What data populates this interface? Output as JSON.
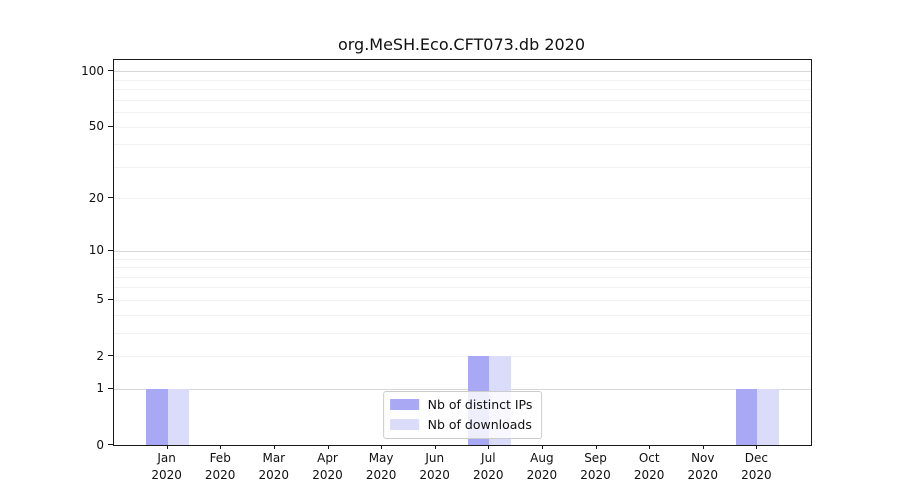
{
  "title": "org.MeSH.Eco.CFT073.db 2020",
  "chart_data": {
    "type": "bar",
    "title": "org.MeSH.Eco.CFT073.db 2020",
    "categories": [
      "Jan",
      "Feb",
      "Mar",
      "Apr",
      "May",
      "Jun",
      "Jul",
      "Aug",
      "Sep",
      "Oct",
      "Nov",
      "Dec"
    ],
    "category_year": "2020",
    "series": [
      {
        "name": "Nb of distinct IPs",
        "color": "#a8a8f5",
        "values": [
          1,
          0,
          0,
          0,
          0,
          0,
          2,
          0,
          0,
          0,
          0,
          1
        ]
      },
      {
        "name": "Nb of downloads",
        "color": "#dbdbfa",
        "values": [
          1,
          0,
          0,
          0,
          0,
          0,
          2,
          0,
          0,
          0,
          0,
          1
        ]
      }
    ],
    "yscale": "log1p",
    "ylim": [
      0,
      115
    ],
    "ytick_values": [
      0,
      1,
      2,
      5,
      10,
      20,
      50,
      100
    ],
    "major_gridlines": [
      1,
      10,
      100
    ],
    "minor_gridlines": [
      2,
      3,
      4,
      5,
      6,
      7,
      8,
      9,
      20,
      30,
      40,
      50,
      60,
      70,
      80,
      90
    ],
    "grid": true,
    "legend_position": "lower center",
    "xlabel": "",
    "ylabel": ""
  }
}
